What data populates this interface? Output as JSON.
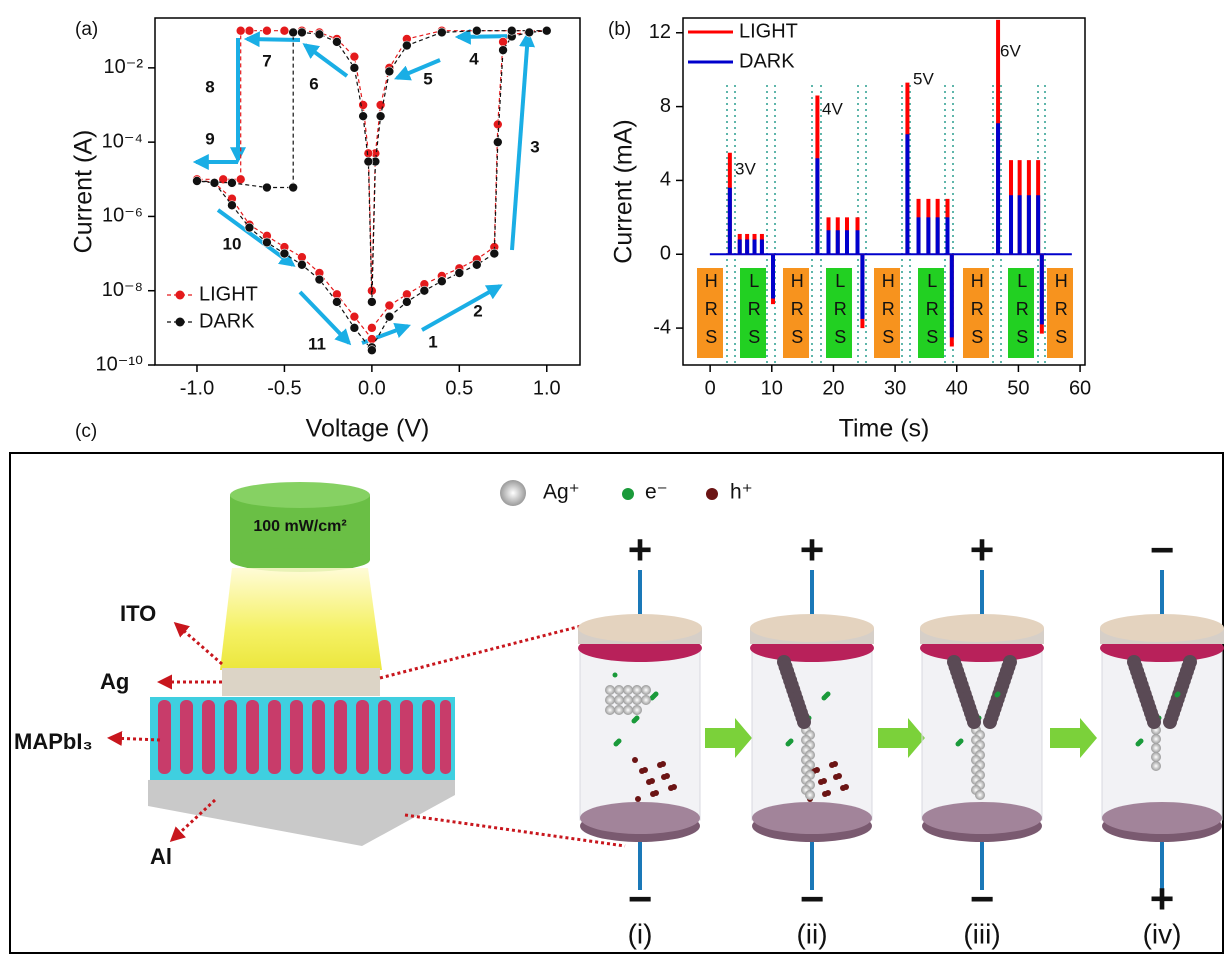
{
  "panel_labels": [
    "(a)",
    "(b)",
    "(c)"
  ],
  "chart_data": [
    {
      "type": "line",
      "log_y": true,
      "x_label": "Voltage (V)",
      "y_label": "Current (A)",
      "xlim": [
        -1.24,
        1.19
      ],
      "ylim": [
        1e-10,
        0.22
      ],
      "xticks": [
        {
          "value": -1,
          "label": "-1.0"
        },
        {
          "value": -0.5,
          "label": "-0.5"
        },
        {
          "value": 0,
          "label": "0.0"
        },
        {
          "value": 0.5,
          "label": "0.5"
        },
        {
          "value": 1,
          "label": "1.0"
        }
      ],
      "yticks": [
        {
          "value": 1e-10,
          "label": "10⁻¹⁰"
        },
        {
          "value": 1e-08,
          "label": "10⁻⁸"
        },
        {
          "value": 1e-06,
          "label": "10⁻⁶"
        },
        {
          "value": 0.0001,
          "label": "10⁻⁴"
        },
        {
          "value": 0.01,
          "label": "10⁻²"
        }
      ],
      "legend": "lower left",
      "annotations": [
        "1",
        "2",
        "3",
        "4",
        "5",
        "6",
        "7",
        "8",
        "9",
        "10",
        "11"
      ],
      "series": [
        {
          "name": "LIGHT",
          "color": "#e41a1c",
          "x": [
            0,
            0.1,
            0.2,
            0.3,
            0.4,
            0.5,
            0.6,
            0.7,
            0.72,
            0.75,
            0.8,
            0.9,
            1.0,
            0.8,
            0.6,
            0.4,
            0.2,
            0.1,
            0.05,
            0.02,
            0,
            -0.02,
            -0.05,
            -0.1,
            -0.2,
            -0.3,
            -0.4,
            -0.5,
            -0.6,
            -0.7,
            -0.75,
            -0.75,
            -0.85,
            -1.0,
            -0.9,
            -0.8,
            -0.7,
            -0.6,
            -0.5,
            -0.4,
            -0.3,
            -0.2,
            -0.1,
            0
          ],
          "values": [
            1e-09,
            4e-09,
            8e-09,
            1.5e-08,
            2.5e-08,
            4e-08,
            7e-08,
            1.5e-07,
            0.0003,
            0.05,
            0.08,
            0.09,
            0.1,
            0.1,
            0.1,
            0.1,
            0.06,
            0.01,
            0.001,
            5e-05,
            1e-08,
            5e-05,
            0.001,
            0.02,
            0.06,
            0.09,
            0.1,
            0.1,
            0.1,
            0.1,
            0.1,
            1e-05,
            1e-05,
            1e-05,
            8e-06,
            3e-06,
            6e-07,
            3e-07,
            1.5e-07,
            8e-08,
            3e-08,
            8e-09,
            2e-09,
            5e-10
          ]
        },
        {
          "name": "DARK",
          "color": "#111111",
          "x": [
            0,
            0.1,
            0.2,
            0.3,
            0.4,
            0.5,
            0.6,
            0.7,
            0.72,
            0.75,
            0.8,
            0.9,
            1.0,
            0.8,
            0.6,
            0.4,
            0.2,
            0.1,
            0.05,
            0.02,
            0,
            -0.02,
            -0.05,
            -0.1,
            -0.2,
            -0.3,
            -0.4,
            -0.45,
            -0.45,
            -0.6,
            -0.8,
            -1.0,
            -0.9,
            -0.8,
            -0.7,
            -0.6,
            -0.5,
            -0.4,
            -0.3,
            -0.2,
            -0.1,
            0
          ],
          "values": [
            3e-10,
            2e-09,
            5e-09,
            1e-08,
            1.8e-08,
            3e-08,
            5e-08,
            1e-07,
            0.0001,
            0.03,
            0.07,
            0.09,
            0.1,
            0.1,
            0.1,
            0.09,
            0.04,
            0.008,
            0.0005,
            3e-05,
            5e-09,
            3e-05,
            0.0005,
            0.01,
            0.05,
            0.08,
            0.09,
            0.09,
            6e-06,
            6e-06,
            8e-06,
            9e-06,
            8e-06,
            2e-06,
            5e-07,
            2e-07,
            1e-07,
            5e-08,
            2e-08,
            5e-09,
            1e-09,
            2.5e-10
          ]
        }
      ]
    },
    {
      "type": "stem",
      "x_label": "Time (s)",
      "y_label": "Current (mA)",
      "xlim": [
        -4.4,
        60.8
      ],
      "ylim": [
        -6,
        12.8
      ],
      "xticks": [
        0,
        10,
        20,
        30,
        40,
        50,
        60
      ],
      "yticks": [
        -4,
        0,
        4,
        8,
        12
      ],
      "legend": "upper left",
      "annotations": [
        "3V",
        "4V",
        "5V",
        "6V"
      ],
      "states": [
        "HRS",
        "LRS",
        "HRS",
        "LRS",
        "HRS",
        "LRS",
        "HRS",
        "LRS",
        "HRS"
      ],
      "state_colors": {
        "HRS": "#f7931e",
        "LRS": "#22d022"
      },
      "series": [
        {
          "name": "LIGHT",
          "color": "#ff0000",
          "x": [
            3.2,
            4.8,
            6.0,
            7.2,
            8.4,
            10.2,
            17.4,
            19.2,
            20.7,
            22.2,
            23.9,
            24.7,
            32.0,
            33.8,
            35.4,
            36.9,
            38.5,
            39.2,
            46.7,
            48.8,
            50.2,
            51.7,
            53.2,
            53.8
          ],
          "values": [
            5.5,
            1.1,
            1.1,
            1.1,
            1.1,
            -2.7,
            8.6,
            2.0,
            2.0,
            2.0,
            2.0,
            -4.0,
            9.3,
            3.0,
            3.0,
            3.0,
            3.0,
            -5.0,
            12.7,
            5.1,
            5.1,
            5.1,
            5.1,
            -4.3
          ]
        },
        {
          "name": "DARK",
          "color": "#0000cc",
          "x": [
            3.2,
            4.8,
            6.0,
            7.2,
            8.4,
            10.2,
            17.4,
            19.2,
            20.7,
            22.2,
            23.9,
            24.7,
            32.0,
            33.8,
            35.4,
            36.9,
            38.5,
            39.2,
            46.7,
            48.8,
            50.2,
            51.7,
            53.2,
            53.8
          ],
          "values": [
            3.6,
            0.8,
            0.8,
            0.8,
            0.8,
            -2.4,
            5.2,
            1.3,
            1.3,
            1.3,
            1.3,
            -3.5,
            6.5,
            2.0,
            2.0,
            2.0,
            2.0,
            -4.5,
            7.1,
            3.2,
            3.2,
            3.2,
            3.2,
            -3.8
          ]
        }
      ]
    }
  ],
  "diagram": {
    "light_source": "100 mW/cm²",
    "layers": [
      "ITO",
      "Ag",
      "MAPbI₃",
      "Al"
    ],
    "legend": [
      "Ag⁺",
      "e⁻",
      "h⁺"
    ],
    "sign_colors": {
      "+": "#e8141c",
      "−": "#111111"
    },
    "stages": [
      {
        "label": "(i)",
        "top": "+",
        "bottom": "−"
      },
      {
        "label": "(ii)",
        "top": "+",
        "bottom": "−"
      },
      {
        "label": "(iii)",
        "top": "+",
        "bottom": "−"
      },
      {
        "label": "(iv)",
        "top": "−",
        "bottom": "+"
      }
    ]
  }
}
